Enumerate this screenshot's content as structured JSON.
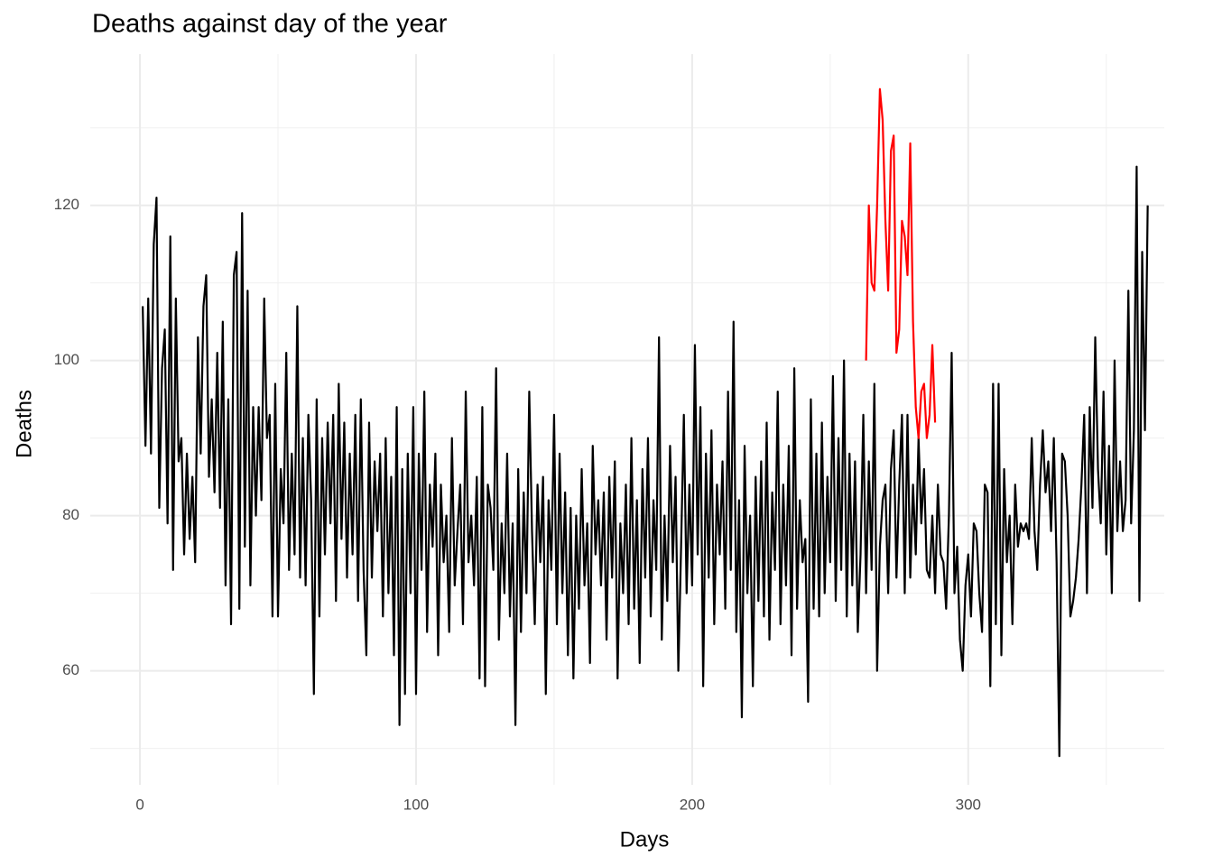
{
  "chart_data": {
    "type": "line",
    "title": "Deaths against day of the year",
    "x_label": "Days",
    "y_label": "Deaths",
    "xlim": [
      -18,
      371
    ],
    "ylim": [
      45.3,
      139.5
    ],
    "xticks": [
      0,
      100,
      200,
      300
    ],
    "yticks": [
      60,
      80,
      100,
      120
    ],
    "minor_xticks": [
      50,
      150,
      250,
      350
    ],
    "minor_yticks": [
      50,
      70,
      90,
      110,
      130
    ],
    "grid": true,
    "x": [
      1,
      2,
      3,
      4,
      5,
      6,
      7,
      8,
      9,
      10,
      11,
      12,
      13,
      14,
      15,
      16,
      17,
      18,
      19,
      20,
      21,
      22,
      23,
      24,
      25,
      26,
      27,
      28,
      29,
      30,
      31,
      32,
      33,
      34,
      35,
      36,
      37,
      38,
      39,
      40,
      41,
      42,
      43,
      44,
      45,
      46,
      47,
      48,
      49,
      50,
      51,
      52,
      53,
      54,
      55,
      56,
      57,
      58,
      59,
      60,
      61,
      62,
      63,
      64,
      65,
      66,
      67,
      68,
      69,
      70,
      71,
      72,
      73,
      74,
      75,
      76,
      77,
      78,
      79,
      80,
      81,
      82,
      83,
      84,
      85,
      86,
      87,
      88,
      89,
      90,
      91,
      92,
      93,
      94,
      95,
      96,
      97,
      98,
      99,
      100,
      101,
      102,
      103,
      104,
      105,
      106,
      107,
      108,
      109,
      110,
      111,
      112,
      113,
      114,
      115,
      116,
      117,
      118,
      119,
      120,
      121,
      122,
      123,
      124,
      125,
      126,
      127,
      128,
      129,
      130,
      131,
      132,
      133,
      134,
      135,
      136,
      137,
      138,
      139,
      140,
      141,
      142,
      143,
      144,
      145,
      146,
      147,
      148,
      149,
      150,
      151,
      152,
      153,
      154,
      155,
      156,
      157,
      158,
      159,
      160,
      161,
      162,
      163,
      164,
      165,
      166,
      167,
      168,
      169,
      170,
      171,
      172,
      173,
      174,
      175,
      176,
      177,
      178,
      179,
      180,
      181,
      182,
      183,
      184,
      185,
      186,
      187,
      188,
      189,
      190,
      191,
      192,
      193,
      194,
      195,
      196,
      197,
      198,
      199,
      200,
      201,
      202,
      203,
      204,
      205,
      206,
      207,
      208,
      209,
      210,
      211,
      212,
      213,
      214,
      215,
      216,
      217,
      218,
      219,
      220,
      221,
      222,
      223,
      224,
      225,
      226,
      227,
      228,
      229,
      230,
      231,
      232,
      233,
      234,
      235,
      236,
      237,
      238,
      239,
      240,
      241,
      242,
      243,
      244,
      245,
      246,
      247,
      248,
      249,
      250,
      251,
      252,
      253,
      254,
      255,
      256,
      257,
      258,
      259,
      260,
      261,
      262,
      263,
      264,
      265,
      266,
      267,
      268,
      269,
      270,
      271,
      272,
      273,
      274,
      275,
      276,
      277,
      278,
      279,
      280,
      281,
      282,
      283,
      284,
      285,
      286,
      287,
      288,
      289,
      290,
      291,
      292,
      293,
      294,
      295,
      296,
      297,
      298,
      299,
      300,
      301,
      302,
      303,
      304,
      305,
      306,
      307,
      308,
      309,
      310,
      311,
      312,
      313,
      314,
      315,
      316,
      317,
      318,
      319,
      320,
      321,
      322,
      323,
      324,
      325,
      326,
      327,
      328,
      329,
      330,
      331,
      332,
      333,
      334,
      335,
      336,
      337,
      338,
      339,
      340,
      341,
      342,
      343,
      344,
      345,
      346,
      347,
      348,
      349,
      350,
      351,
      352,
      353,
      354,
      355,
      356,
      357,
      358,
      359,
      360,
      361,
      362,
      363,
      364,
      365
    ],
    "series": [
      {
        "color": "#000000",
        "values": [
          107,
          89,
          108,
          88,
          115,
          121,
          81,
          99,
          104,
          79,
          116,
          73,
          108,
          87,
          90,
          75,
          88,
          77,
          85,
          74,
          103,
          88,
          107,
          111,
          85,
          95,
          83,
          101,
          81,
          105,
          71,
          95,
          66,
          111,
          114,
          68,
          119,
          76,
          109,
          71,
          94,
          80,
          94,
          82,
          108,
          90,
          93,
          67,
          97,
          67,
          86,
          79,
          101,
          73,
          88,
          75,
          107,
          72,
          90,
          71,
          93,
          82,
          57,
          95,
          67,
          90,
          75,
          92,
          79,
          93,
          69,
          97,
          77,
          92,
          72,
          88,
          75,
          93,
          69,
          95,
          73,
          62,
          92,
          72,
          87,
          78,
          88,
          67,
          90,
          70,
          85,
          62,
          94,
          53,
          86,
          57,
          88,
          70,
          94,
          57,
          88,
          73,
          96,
          65,
          84,
          76,
          88,
          62,
          84,
          74,
          80,
          65,
          90,
          71,
          78,
          84,
          66,
          96,
          74,
          80,
          71,
          85,
          59,
          94,
          58,
          84,
          81,
          73,
          99,
          64,
          79,
          70,
          88,
          67,
          79,
          53,
          86,
          65,
          83,
          70,
          96,
          78,
          66,
          84,
          74,
          85,
          57,
          82,
          73,
          93,
          66,
          88,
          70,
          83,
          62,
          81,
          59,
          80,
          68,
          86,
          71,
          79,
          61,
          89,
          75,
          82,
          71,
          83,
          64,
          85,
          72,
          87,
          59,
          79,
          70,
          84,
          66,
          90,
          68,
          82,
          61,
          86,
          72,
          90,
          67,
          82,
          73,
          103,
          64,
          80,
          69,
          89,
          74,
          85,
          60,
          76,
          93,
          70,
          84,
          71,
          102,
          75,
          94,
          58,
          88,
          72,
          91,
          66,
          84,
          75,
          87,
          68,
          96,
          73,
          105,
          65,
          82,
          54,
          89,
          70,
          80,
          58,
          85,
          69,
          87,
          67,
          92,
          64,
          83,
          73,
          96,
          66,
          84,
          71,
          89,
          62,
          99,
          68,
          82,
          74,
          77,
          56,
          95,
          68,
          88,
          67,
          92,
          70,
          85,
          74,
          98,
          69,
          90,
          73,
          100,
          67,
          88,
          71,
          87,
          65,
          75,
          93,
          70,
          87,
          73,
          97,
          60,
          76,
          82,
          84,
          70,
          86,
          91,
          72,
          84,
          93,
          70,
          93,
          72,
          84,
          75,
          90,
          79,
          86,
          73,
          72,
          80,
          70,
          84,
          75,
          74,
          68,
          80,
          101,
          70,
          76,
          64,
          60,
          71,
          75,
          67,
          79,
          78,
          70,
          65,
          84,
          83,
          58,
          97,
          66,
          97,
          62,
          86,
          74,
          80,
          66,
          84,
          76,
          79,
          78,
          79,
          77,
          90,
          78,
          73,
          84,
          91,
          83,
          87,
          78,
          90,
          74,
          49,
          88,
          87,
          80,
          67,
          69,
          72,
          77,
          84,
          93,
          70,
          94,
          81,
          103,
          86,
          79,
          96,
          75,
          89,
          70,
          100,
          78,
          87,
          78,
          82,
          109,
          79,
          91,
          125,
          69,
          114,
          91,
          120
        ]
      },
      {
        "color": "#ff0000",
        "x": [
          263,
          264,
          265,
          266,
          267,
          268,
          269,
          270,
          271,
          272,
          273,
          274,
          275,
          276,
          277,
          278,
          279,
          280,
          281,
          282,
          283,
          284,
          285,
          286,
          287,
          288
        ],
        "values": [
          100,
          120,
          110,
          109,
          120,
          135,
          131,
          118,
          109,
          127,
          129,
          101,
          104,
          118,
          116,
          111,
          128,
          105,
          94,
          90,
          96,
          97,
          90,
          93,
          102,
          92
        ]
      }
    ]
  }
}
